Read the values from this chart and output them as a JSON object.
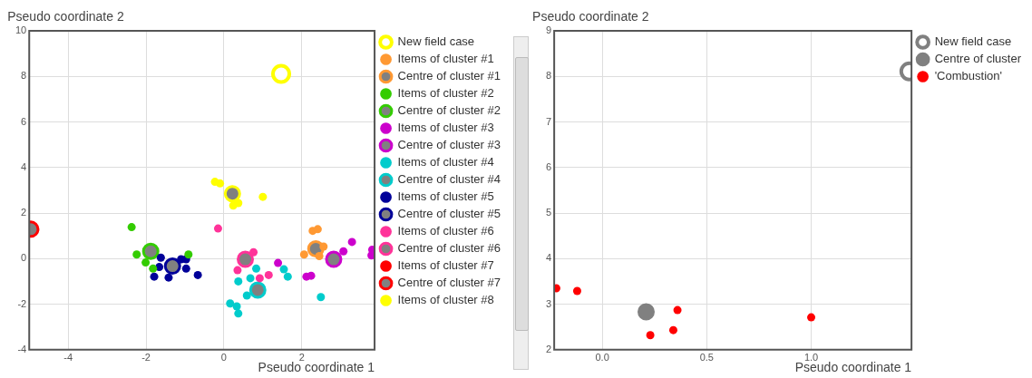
{
  "chart_data": [
    {
      "type": "scatter",
      "xlabel": "Pseudo coordinate 1",
      "ylabel": "Pseudo coordinate 2",
      "xlim": [
        -5,
        3.87
      ],
      "ylim": [
        -4,
        10
      ],
      "xticks": [
        -4,
        -2,
        0,
        2
      ],
      "yticks": [
        -4,
        -2,
        0,
        2,
        4,
        6,
        8,
        10
      ],
      "grid": true,
      "legend": "top right",
      "marker": "circle",
      "series": [
        {
          "name": "New field case",
          "color": "#ffff00",
          "x": [
            1.47
          ],
          "values": [
            8.11
          ]
        },
        {
          "name": "Items of cluster #1",
          "color": "#ff9933",
          "x": [
            2.28,
            2.41,
            2.06,
            2.45,
            2.56
          ],
          "values": [
            1.22,
            1.29,
            0.18,
            0.11,
            0.53
          ]
        },
        {
          "name": "Centre of cluster #1",
          "color": "#ff9933",
          "x": [
            2.36
          ],
          "values": [
            0.43
          ]
        },
        {
          "name": "Items of cluster #2",
          "color": "#33cc00",
          "x": [
            -2.37,
            -2.24,
            -2.01,
            -1.82,
            -0.91
          ],
          "values": [
            1.38,
            0.18,
            -0.17,
            -0.44,
            0.18
          ]
        },
        {
          "name": "Centre of cluster #2",
          "color": "#33cc00",
          "x": [
            -1.88
          ],
          "values": [
            0.32
          ]
        },
        {
          "name": "Items of cluster #3",
          "color": "#cc00cc",
          "x": [
            1.39,
            2.12,
            2.24,
            3.07,
            3.29,
            3.81,
            3.79
          ],
          "values": [
            -0.19,
            -0.79,
            -0.75,
            0.32,
            0.73,
            0.39,
            0.14
          ]
        },
        {
          "name": "Centre of cluster #3",
          "color": "#cc00cc",
          "x": [
            2.82
          ],
          "values": [
            -0.03
          ]
        },
        {
          "name": "Items of cluster #4",
          "color": "#00cccc",
          "x": [
            0.83,
            0.37,
            0.68,
            0.59,
            0.16,
            0.33,
            0.37,
            1.54,
            1.64,
            2.49
          ],
          "values": [
            -0.44,
            -1.0,
            -0.86,
            -1.62,
            -1.97,
            -2.1,
            -2.41,
            -0.47,
            -0.79,
            -1.69
          ]
        },
        {
          "name": "Centre of cluster #4",
          "color": "#00cccc",
          "x": [
            0.87
          ],
          "values": [
            -1.38
          ]
        },
        {
          "name": "Items of cluster #5",
          "color": "#000099",
          "x": [
            -1.62,
            -1.66,
            -1.79,
            -1.42,
            -1.1,
            -0.97,
            -0.97,
            -0.67
          ],
          "values": [
            0.04,
            -0.37,
            -0.79,
            -0.83,
            -0.03,
            -0.03,
            -0.44,
            -0.72
          ]
        },
        {
          "name": "Centre of cluster #5",
          "color": "#000099",
          "x": [
            -1.32
          ],
          "values": [
            -0.33
          ]
        },
        {
          "name": "Items of cluster #6",
          "color": "#ff3399",
          "x": [
            -0.15,
            0.76,
            0.35,
            0.92,
            1.15
          ],
          "values": [
            1.32,
            0.28,
            -0.51,
            -0.86,
            -0.72
          ]
        },
        {
          "name": "Centre of cluster #6",
          "color": "#ff3399",
          "x": [
            0.55
          ],
          "values": [
            -0.03
          ]
        },
        {
          "name": "Items of cluster #7",
          "color": "#ff0000"
        },
        {
          "name": "Centre of cluster #7",
          "color": "#ff0000",
          "x": [
            -4.96
          ],
          "values": [
            1.29
          ]
        },
        {
          "name": "Items of cluster #8",
          "color": "#ffff00",
          "x": [
            -0.23,
            -0.1,
            0.24,
            0.37,
            1.0
          ],
          "values": [
            3.37,
            3.3,
            2.33,
            2.44,
            2.71
          ]
        },
        {
          "color": "#ffff00",
          "x": [
            0.22
          ],
          "values": [
            2.85
          ]
        }
      ]
    },
    {
      "type": "scatter",
      "xlabel": "Pseudo coordinate 1",
      "ylabel": "Pseudo coordinate 2",
      "xlim": [
        -0.23,
        1.48
      ],
      "ylim": [
        2,
        9
      ],
      "xticks": [
        {
          "value": 0,
          "label": "0.0"
        },
        {
          "value": 0.5,
          "label": "0.5"
        },
        {
          "value": 1,
          "label": "1.0"
        }
      ],
      "yticks": [
        2,
        3,
        4,
        5,
        6,
        7,
        8,
        9
      ],
      "grid": true,
      "legend": "top right",
      "marker": "circle",
      "series": [
        {
          "name": "New field case",
          "color": "#808080",
          "x": [
            1.47
          ],
          "values": [
            8.11
          ]
        },
        {
          "name": "Centre of cluster",
          "color": "#808080",
          "x": [
            0.21
          ],
          "values": [
            2.83
          ]
        },
        {
          "name": "'Combustion'",
          "color": "#ff0000",
          "x": [
            -0.22,
            -0.12,
            0.36,
            0.34,
            0.23,
            1.0
          ],
          "values": [
            3.35,
            3.29,
            2.87,
            2.43,
            2.32,
            2.71
          ]
        }
      ]
    }
  ]
}
